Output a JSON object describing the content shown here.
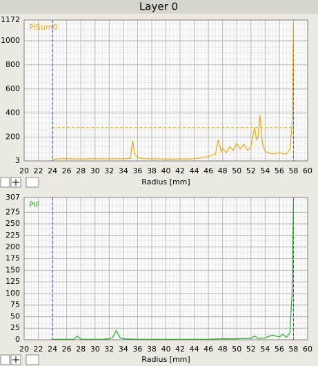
{
  "window_title": "Layer 0",
  "chart_data": [
    {
      "type": "line",
      "xlabel": "Radius [mm]",
      "xlim": [
        20,
        60
      ],
      "xticks": [
        20,
        22,
        24,
        26,
        28,
        30,
        32,
        34,
        36,
        38,
        40,
        42,
        44,
        46,
        48,
        50,
        52,
        54,
        56,
        58,
        60
      ],
      "ylim": [
        3,
        1172
      ],
      "yticks": [
        3,
        200,
        400,
        600,
        800,
        1000,
        1172
      ],
      "grid": true,
      "x": [
        24,
        25,
        26,
        27,
        28,
        29,
        30,
        31,
        32,
        33,
        34,
        35,
        35.3,
        35.6,
        36,
        37,
        38,
        39,
        40,
        41,
        42,
        43,
        44,
        45,
        46,
        47,
        47.4,
        47.8,
        48,
        48.5,
        49,
        49.5,
        50,
        50.5,
        51,
        51.5,
        52,
        52.5,
        52.8,
        53,
        53.3,
        53.6,
        54,
        55,
        56,
        57,
        57.5,
        57.8,
        58
      ],
      "series": [
        {
          "name": "PISum0",
          "color": "#f0a800",
          "values": [
            15,
            20,
            22,
            20,
            18,
            20,
            22,
            20,
            20,
            22,
            20,
            25,
            170,
            60,
            30,
            22,
            20,
            20,
            18,
            18,
            20,
            18,
            22,
            30,
            40,
            60,
            180,
            80,
            110,
            70,
            120,
            90,
            150,
            100,
            140,
            90,
            120,
            280,
            180,
            200,
            380,
            150,
            80,
            60,
            70,
            60,
            100,
            300,
            1172
          ]
        }
      ],
      "markers": [
        {
          "x": 24,
          "color": "#3333ff"
        },
        {
          "x": 58,
          "color": "#cc3333"
        }
      ],
      "threshold": {
        "y": 280,
        "x": [
          24,
          58
        ],
        "color": "#f0b000"
      }
    },
    {
      "type": "line",
      "xlabel": "Radius [mm]",
      "xlim": [
        20,
        60
      ],
      "xticks": [
        20,
        22,
        24,
        26,
        28,
        30,
        32,
        34,
        36,
        38,
        40,
        42,
        44,
        46,
        48,
        50,
        52,
        54,
        56,
        58,
        60
      ],
      "ylim": [
        0,
        307
      ],
      "yticks": [
        0,
        25,
        50,
        75,
        100,
        125,
        150,
        175,
        200,
        225,
        250,
        275,
        307
      ],
      "grid": true,
      "x": [
        24,
        25,
        26,
        27,
        27.5,
        28,
        29,
        30,
        31,
        32,
        32.5,
        33,
        33.5,
        34,
        36,
        38,
        40,
        42,
        44,
        46,
        48,
        50,
        51,
        52,
        52.5,
        53,
        54,
        55,
        56,
        56.5,
        57,
        57.5,
        57.8,
        58
      ],
      "series": [
        {
          "name": "PIF",
          "color": "#22aa22",
          "values": [
            1,
            1,
            1,
            1,
            8,
            1,
            1,
            1,
            1,
            2,
            5,
            20,
            5,
            2,
            1,
            1,
            1,
            1,
            1,
            1,
            2,
            2,
            3,
            3,
            8,
            3,
            4,
            10,
            6,
            12,
            5,
            15,
            100,
            307
          ]
        }
      ],
      "markers": [
        {
          "x": 24,
          "color": "#3333ff"
        },
        {
          "x": 58,
          "color": "#3333ff"
        }
      ]
    }
  ]
}
